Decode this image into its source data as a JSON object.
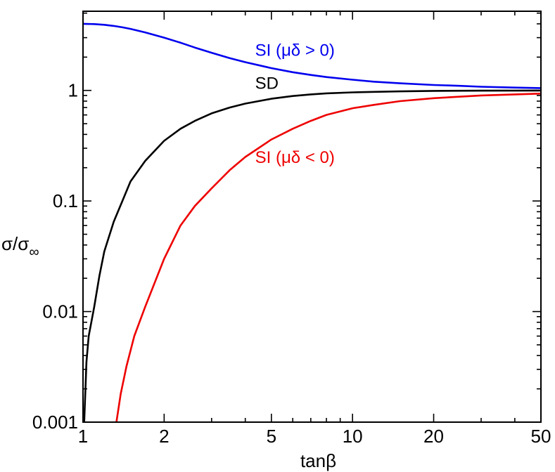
{
  "chart_data": {
    "type": "line",
    "title": "",
    "xlabel": "tanβ",
    "ylabel": "σ/σ∞",
    "ylabel_main": "σ/σ",
    "ylabel_sub": "∞",
    "xscale": "log",
    "yscale": "log",
    "xlim": [
      1,
      50
    ],
    "ylim": [
      0.001,
      5.2
    ],
    "xticks": [
      {
        "value": 1,
        "label": "1"
      },
      {
        "value": 2,
        "label": "2"
      },
      {
        "value": 5,
        "label": "5"
      },
      {
        "value": 10,
        "label": "10"
      },
      {
        "value": 20,
        "label": "20"
      },
      {
        "value": 50,
        "label": "50"
      }
    ],
    "yticks": [
      {
        "value": 0.001,
        "label": "0.001"
      },
      {
        "value": 0.01,
        "label": "0.01"
      },
      {
        "value": 0.1,
        "label": "0.1"
      },
      {
        "value": 1,
        "label": "1"
      }
    ],
    "grid": false,
    "series": [
      {
        "name": "SI (μδ > 0)",
        "color": "#0000ee",
        "x": [
          1,
          1.1,
          1.2,
          1.3,
          1.4,
          1.5,
          1.7,
          2,
          2.3,
          2.6,
          3,
          3.5,
          4,
          5,
          6,
          7,
          8,
          10,
          12,
          15,
          20,
          25,
          30,
          40,
          50
        ],
        "y": [
          4.0,
          3.98,
          3.92,
          3.83,
          3.72,
          3.6,
          3.35,
          3.0,
          2.7,
          2.44,
          2.19,
          1.96,
          1.8,
          1.59,
          1.46,
          1.38,
          1.32,
          1.25,
          1.2,
          1.16,
          1.12,
          1.1,
          1.08,
          1.06,
          1.05
        ]
      },
      {
        "name": "SD",
        "color": "#000000",
        "x": [
          1.01,
          1.03,
          1.05,
          1.1,
          1.15,
          1.2,
          1.3,
          1.4,
          1.5,
          1.7,
          2,
          2.3,
          2.6,
          3,
          3.5,
          4,
          5,
          6,
          7,
          8,
          10,
          12,
          15,
          20,
          30,
          50
        ],
        "y": [
          0.001,
          0.0035,
          0.006,
          0.011,
          0.021,
          0.035,
          0.065,
          0.1,
          0.15,
          0.23,
          0.35,
          0.45,
          0.53,
          0.62,
          0.7,
          0.76,
          0.84,
          0.89,
          0.92,
          0.94,
          0.96,
          0.97,
          0.98,
          0.99,
          0.995,
          0.998
        ]
      },
      {
        "name": "SI (μδ < 0)",
        "color": "#ee0000",
        "x": [
          1.33,
          1.38,
          1.45,
          1.55,
          1.7,
          2,
          2.3,
          2.6,
          3,
          3.5,
          4,
          5,
          6,
          7,
          8,
          10,
          12,
          15,
          20,
          30,
          40,
          50
        ],
        "y": [
          0.001,
          0.0018,
          0.0032,
          0.006,
          0.011,
          0.03,
          0.06,
          0.09,
          0.13,
          0.19,
          0.25,
          0.36,
          0.45,
          0.53,
          0.6,
          0.69,
          0.74,
          0.8,
          0.85,
          0.9,
          0.92,
          0.935
        ]
      }
    ],
    "annotations": [
      {
        "text": "SI (μδ > 0)",
        "x": 4.35,
        "y": 2.05,
        "series": "SI (μδ > 0)"
      },
      {
        "text": "SD",
        "x": 4.35,
        "y": 1.03,
        "series": "SD"
      },
      {
        "text": "SI (μδ < 0)",
        "x": 4.35,
        "y": 0.22,
        "series": "SI (μδ < 0)"
      }
    ]
  }
}
